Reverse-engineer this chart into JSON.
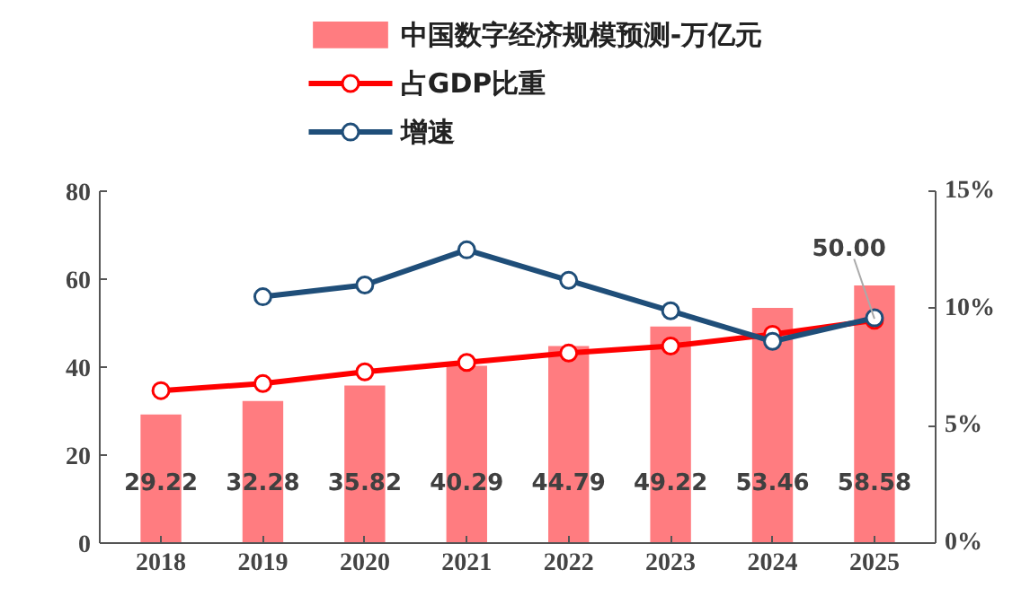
{
  "chart_data": {
    "type": "bar",
    "categories": [
      "2018",
      "2019",
      "2020",
      "2021",
      "2022",
      "2023",
      "2024",
      "2025"
    ],
    "series": [
      {
        "name": "中国数字经济规模预测-万亿元",
        "color": "#ff7c80",
        "values": [
          29.22,
          32.28,
          35.82,
          40.29,
          44.79,
          49.22,
          53.46,
          58.58
        ],
        "value_labels": [
          "29.22",
          "32.28",
          "35.82",
          "40.29",
          "44.79",
          "49.22",
          "53.46",
          "58.58"
        ]
      },
      {
        "name": "占GDP比重",
        "type": "line",
        "axis": "y2",
        "color": "#ff0000",
        "values": [
          6.5,
          6.8,
          7.3,
          7.7,
          8.1,
          8.4,
          8.9,
          9.5
        ]
      },
      {
        "name": "增速",
        "type": "line",
        "axis": "y2",
        "color": "#1f4e79",
        "values": [
          null,
          10.5,
          11.0,
          12.5,
          11.2,
          9.9,
          8.6,
          9.6
        ]
      }
    ],
    "ylim": [
      0,
      80
    ],
    "yticks": [
      0,
      20,
      40,
      60,
      80
    ],
    "y2lim": [
      0,
      15
    ],
    "y2ticks": [
      {
        "value": 0,
        "label": "0%"
      },
      {
        "value": 5,
        "label": "5%"
      },
      {
        "value": 10,
        "label": "10%"
      },
      {
        "value": 15,
        "label": "15%"
      }
    ],
    "annotations": [
      {
        "text": "50.00",
        "x": "2025",
        "y": 51
      }
    ],
    "legend": "top",
    "grid": false,
    "marker": "circle",
    "line_style": "solid"
  }
}
